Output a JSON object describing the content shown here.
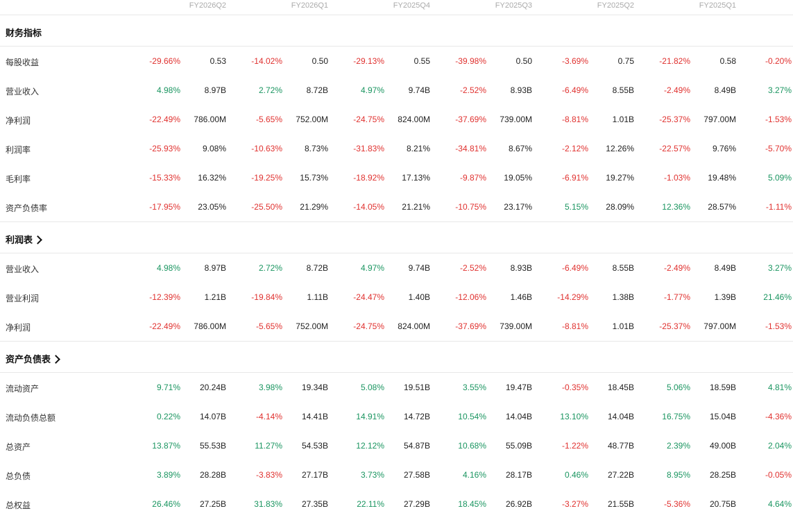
{
  "columns": [
    "FY2026Q2",
    "FY2026Q1",
    "FY2025Q4",
    "FY2025Q3",
    "FY2025Q2",
    "FY2025Q1"
  ],
  "colors": {
    "negative": "#e0312f",
    "positive": "#1a9560"
  },
  "sections": [
    {
      "title": "财务指标",
      "has_chevron": false,
      "rows": [
        {
          "label": "每股收益",
          "cells": [
            [
              "-29.66%",
              "0.53"
            ],
            [
              "-14.02%",
              "0.50"
            ],
            [
              "-29.13%",
              "0.55"
            ],
            [
              "-39.98%",
              "0.50"
            ],
            [
              "-3.69%",
              "0.75"
            ],
            [
              "-21.82%",
              "0.58"
            ],
            [
              "-0.20%",
              ""
            ]
          ]
        },
        {
          "label": "营业收入",
          "cells": [
            [
              "4.98%",
              "8.97B"
            ],
            [
              "2.72%",
              "8.72B"
            ],
            [
              "4.97%",
              "9.74B"
            ],
            [
              "-2.52%",
              "8.93B"
            ],
            [
              "-6.49%",
              "8.55B"
            ],
            [
              "-2.49%",
              "8.49B"
            ],
            [
              "3.27%",
              ""
            ]
          ]
        },
        {
          "label": "净利润",
          "cells": [
            [
              "-22.49%",
              "786.00M"
            ],
            [
              "-5.65%",
              "752.00M"
            ],
            [
              "-24.75%",
              "824.00M"
            ],
            [
              "-37.69%",
              "739.00M"
            ],
            [
              "-8.81%",
              "1.01B"
            ],
            [
              "-25.37%",
              "797.00M"
            ],
            [
              "-1.53%",
              ""
            ]
          ]
        },
        {
          "label": "利润率",
          "cells": [
            [
              "-25.93%",
              "9.08%"
            ],
            [
              "-10.63%",
              "8.73%"
            ],
            [
              "-31.83%",
              "8.21%"
            ],
            [
              "-34.81%",
              "8.67%"
            ],
            [
              "-2.12%",
              "12.26%"
            ],
            [
              "-22.57%",
              "9.76%"
            ],
            [
              "-5.70%",
              ""
            ]
          ]
        },
        {
          "label": "毛利率",
          "cells": [
            [
              "-15.33%",
              "16.32%"
            ],
            [
              "-19.25%",
              "15.73%"
            ],
            [
              "-18.92%",
              "17.13%"
            ],
            [
              "-9.87%",
              "19.05%"
            ],
            [
              "-6.91%",
              "19.27%"
            ],
            [
              "-1.03%",
              "19.48%"
            ],
            [
              "5.09%",
              ""
            ]
          ]
        },
        {
          "label": "资产负债率",
          "cells": [
            [
              "-17.95%",
              "23.05%"
            ],
            [
              "-25.50%",
              "21.29%"
            ],
            [
              "-14.05%",
              "21.21%"
            ],
            [
              "-10.75%",
              "23.17%"
            ],
            [
              "5.15%",
              "28.09%"
            ],
            [
              "12.36%",
              "28.57%"
            ],
            [
              "-1.11%",
              ""
            ]
          ]
        }
      ]
    },
    {
      "title": "利润表",
      "has_chevron": true,
      "rows": [
        {
          "label": "营业收入",
          "cells": [
            [
              "4.98%",
              "8.97B"
            ],
            [
              "2.72%",
              "8.72B"
            ],
            [
              "4.97%",
              "9.74B"
            ],
            [
              "-2.52%",
              "8.93B"
            ],
            [
              "-6.49%",
              "8.55B"
            ],
            [
              "-2.49%",
              "8.49B"
            ],
            [
              "3.27%",
              ""
            ]
          ]
        },
        {
          "label": "营业利润",
          "cells": [
            [
              "-12.39%",
              "1.21B"
            ],
            [
              "-19.84%",
              "1.11B"
            ],
            [
              "-24.47%",
              "1.40B"
            ],
            [
              "-12.06%",
              "1.46B"
            ],
            [
              "-14.29%",
              "1.38B"
            ],
            [
              "-1.77%",
              "1.39B"
            ],
            [
              "21.46%",
              ""
            ]
          ]
        },
        {
          "label": "净利润",
          "cells": [
            [
              "-22.49%",
              "786.00M"
            ],
            [
              "-5.65%",
              "752.00M"
            ],
            [
              "-24.75%",
              "824.00M"
            ],
            [
              "-37.69%",
              "739.00M"
            ],
            [
              "-8.81%",
              "1.01B"
            ],
            [
              "-25.37%",
              "797.00M"
            ],
            [
              "-1.53%",
              ""
            ]
          ]
        }
      ]
    },
    {
      "title": "资产负债表",
      "has_chevron": true,
      "rows": [
        {
          "label": "流动资产",
          "cells": [
            [
              "9.71%",
              "20.24B"
            ],
            [
              "3.98%",
              "19.34B"
            ],
            [
              "5.08%",
              "19.51B"
            ],
            [
              "3.55%",
              "19.47B"
            ],
            [
              "-0.35%",
              "18.45B"
            ],
            [
              "5.06%",
              "18.59B"
            ],
            [
              "4.81%",
              ""
            ]
          ]
        },
        {
          "label": "流动负债总额",
          "cells": [
            [
              "0.22%",
              "14.07B"
            ],
            [
              "-4.14%",
              "14.41B"
            ],
            [
              "14.91%",
              "14.72B"
            ],
            [
              "10.54%",
              "14.04B"
            ],
            [
              "13.10%",
              "14.04B"
            ],
            [
              "16.75%",
              "15.04B"
            ],
            [
              "-4.36%",
              ""
            ]
          ]
        },
        {
          "label": "总资产",
          "cells": [
            [
              "13.87%",
              "55.53B"
            ],
            [
              "11.27%",
              "54.53B"
            ],
            [
              "12.12%",
              "54.87B"
            ],
            [
              "10.68%",
              "55.09B"
            ],
            [
              "-1.22%",
              "48.77B"
            ],
            [
              "2.39%",
              "49.00B"
            ],
            [
              "2.04%",
              ""
            ]
          ]
        },
        {
          "label": "总负债",
          "cells": [
            [
              "3.89%",
              "28.28B"
            ],
            [
              "-3.83%",
              "27.17B"
            ],
            [
              "3.73%",
              "27.58B"
            ],
            [
              "4.16%",
              "28.17B"
            ],
            [
              "0.46%",
              "27.22B"
            ],
            [
              "8.95%",
              "28.25B"
            ],
            [
              "-0.05%",
              ""
            ]
          ]
        },
        {
          "label": "总权益",
          "cells": [
            [
              "26.46%",
              "27.25B"
            ],
            [
              "31.83%",
              "27.35B"
            ],
            [
              "22.11%",
              "27.29B"
            ],
            [
              "18.45%",
              "26.92B"
            ],
            [
              "-3.27%",
              "21.55B"
            ],
            [
              "-5.36%",
              "20.75B"
            ],
            [
              "4.64%",
              ""
            ]
          ]
        }
      ]
    }
  ]
}
